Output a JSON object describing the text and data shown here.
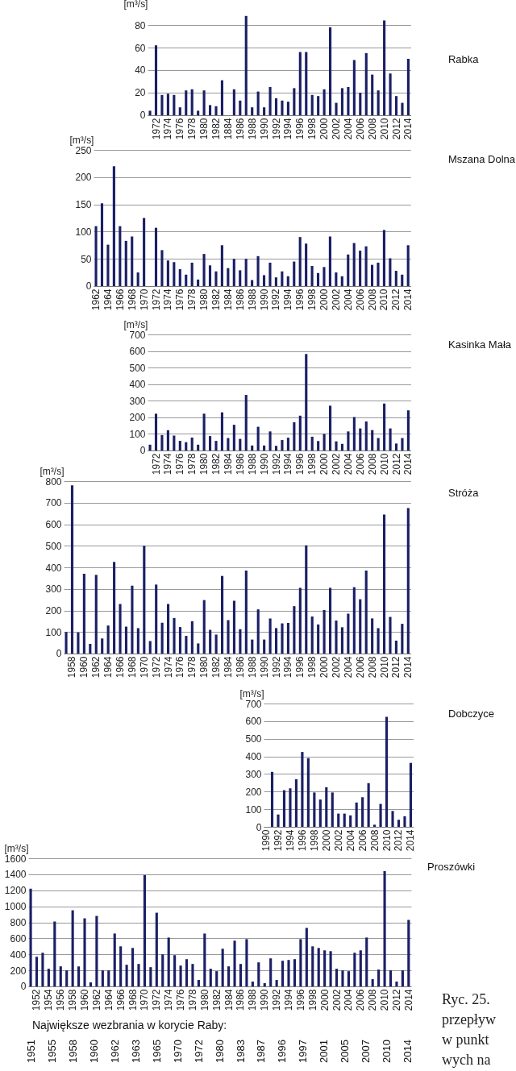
{
  "chart_data": [
    {
      "type": "bar",
      "annotations": [
        "Rabka"
      ],
      "ylabel": "[m³/s]",
      "color": "#1b1f66",
      "grid": "y",
      "ylim": [
        0,
        90
      ],
      "yticks": [
        0,
        20,
        40,
        60,
        80
      ],
      "categories": [
        null,
        "1972",
        null,
        "1974",
        null,
        "1976",
        null,
        "1978",
        null,
        "1980",
        null,
        "1982",
        null,
        "1884",
        null,
        "1986",
        null,
        "1988",
        null,
        "1990",
        null,
        "1992",
        null,
        "1994",
        null,
        "1996",
        null,
        "1998",
        null,
        "2000",
        null,
        "2002",
        null,
        "2004",
        null,
        "2006",
        null,
        "2008",
        null,
        "2010",
        null,
        "2012",
        null,
        "2014"
      ],
      "values": [
        4,
        62,
        18,
        19,
        18,
        7,
        22,
        23,
        4,
        22,
        9,
        8,
        31,
        null,
        23,
        13,
        88,
        7,
        21,
        7,
        25,
        15,
        13,
        12,
        24,
        56,
        56,
        18,
        17,
        23,
        78,
        11,
        24,
        25,
        49,
        20,
        55,
        36,
        22,
        84,
        37,
        17,
        11,
        50
      ]
    },
    {
      "type": "bar",
      "annotations": [
        "Mszana Dolna"
      ],
      "ylabel": "[m³/s]",
      "color": "#1b1f66",
      "grid": "y",
      "ylim": [
        0,
        250
      ],
      "yticks": [
        0,
        50,
        100,
        150,
        200,
        250
      ],
      "categories": [
        "1962",
        null,
        "1964",
        null,
        "1966",
        null,
        "1968",
        null,
        "1970",
        null,
        "1972",
        null,
        "1974",
        null,
        "1976",
        null,
        "1978",
        null,
        "1980",
        null,
        "1982",
        null,
        "1984",
        null,
        "1986",
        null,
        "1988",
        null,
        "1990",
        null,
        "1992",
        null,
        "1994",
        null,
        "1996",
        null,
        "1998",
        null,
        "2000",
        null,
        "2002",
        null,
        "2004",
        null,
        "2006",
        null,
        "2008",
        null,
        "2010",
        null,
        "2012",
        null,
        "2014"
      ],
      "values": [
        110,
        152,
        76,
        220,
        110,
        83,
        91,
        25,
        125,
        null,
        107,
        66,
        47,
        44,
        31,
        21,
        43,
        12,
        59,
        38,
        27,
        75,
        33,
        50,
        29,
        50,
        11,
        55,
        20,
        43,
        16,
        27,
        18,
        45,
        90,
        78,
        37,
        24,
        35,
        91,
        25,
        18,
        58,
        79,
        65,
        73,
        39,
        43,
        103,
        51,
        28,
        21,
        75
      ]
    },
    {
      "type": "bar",
      "annotations": [
        "Kasinka Mała"
      ],
      "ylabel": "[m³/s]",
      "color": "#1b1f66",
      "grid": "y",
      "ylim": [
        0,
        700
      ],
      "yticks": [
        0,
        100,
        200,
        300,
        400,
        500,
        600,
        700
      ],
      "categories": [
        null,
        "1972",
        null,
        "1974",
        null,
        "1976",
        null,
        "1978",
        null,
        "1980",
        null,
        "1982",
        null,
        "1984",
        null,
        "1986",
        null,
        "1988",
        null,
        "1990",
        null,
        "1992",
        null,
        "1994",
        null,
        "1996",
        null,
        "1998",
        null,
        "2000",
        null,
        "2002",
        null,
        "2004",
        null,
        "2006",
        null,
        "2008",
        null,
        "2010",
        null,
        "2012",
        null,
        "2014"
      ],
      "values": [
        35,
        222,
        93,
        122,
        90,
        58,
        50,
        78,
        35,
        222,
        87,
        58,
        230,
        75,
        155,
        70,
        335,
        30,
        143,
        30,
        115,
        28,
        63,
        77,
        170,
        210,
        582,
        83,
        57,
        100,
        270,
        55,
        40,
        115,
        202,
        133,
        175,
        123,
        75,
        283,
        133,
        42,
        75,
        242
      ]
    },
    {
      "type": "bar",
      "annotations": [
        "Stróża"
      ],
      "ylabel": "[m³/s]",
      "color": "#1b1f66",
      "grid": "y",
      "ylim": [
        0,
        800
      ],
      "yticks": [
        0,
        100,
        200,
        300,
        400,
        500,
        600,
        700,
        800
      ],
      "categories": [
        null,
        "1958",
        null,
        "1960",
        null,
        "1962",
        null,
        "1964",
        null,
        "1966",
        null,
        "1968",
        null,
        "1970",
        null,
        "1972",
        null,
        "1974",
        null,
        "1976",
        null,
        "1978",
        null,
        "1980",
        null,
        "1982",
        null,
        "1984",
        null,
        "1986",
        null,
        "1988",
        null,
        "1990",
        null,
        "1992",
        null,
        "1994",
        null,
        "1996",
        null,
        "1998",
        null,
        "2000",
        null,
        "2002",
        null,
        "2004",
        null,
        "2006",
        null,
        "2008",
        null,
        "2010",
        null,
        "2012",
        null,
        "2014"
      ],
      "values": [
        100,
        780,
        98,
        370,
        45,
        365,
        70,
        130,
        425,
        230,
        125,
        315,
        118,
        500,
        58,
        320,
        143,
        230,
        165,
        123,
        82,
        150,
        47,
        248,
        110,
        88,
        360,
        155,
        245,
        113,
        385,
        65,
        205,
        65,
        163,
        118,
        140,
        142,
        220,
        305,
        502,
        172,
        135,
        202,
        305,
        153,
        122,
        185,
        308,
        252,
        385,
        163,
        118,
        645,
        170,
        60,
        138,
        675
      ]
    },
    {
      "type": "bar",
      "annotations": [
        "Dobczyce"
      ],
      "ylabel": "[m³/s]",
      "color": "#1b1f66",
      "grid": "y",
      "ylim": [
        0,
        700
      ],
      "yticks": [
        0,
        100,
        200,
        300,
        400,
        500,
        600,
        700
      ],
      "categories": [
        "1990",
        null,
        "1992",
        null,
        "1994",
        null,
        "1996",
        null,
        "1998",
        null,
        "2000",
        null,
        "2002",
        null,
        "2004",
        null,
        "2006",
        null,
        "2008",
        null,
        "2010",
        null,
        "2012",
        null,
        "2014"
      ],
      "values": [
        null,
        312,
        70,
        208,
        218,
        270,
        425,
        390,
        195,
        155,
        225,
        195,
        75,
        75,
        65,
        138,
        168,
        248,
        12,
        130,
        625,
        90,
        40,
        60,
        363
      ]
    },
    {
      "type": "bar",
      "ylabel": "[m³/s]",
      "color": "#1b1f66",
      "grid": "y",
      "ylim": [
        0,
        1600
      ],
      "yticks": [
        0,
        200,
        400,
        600,
        800,
        {
          "value": 1000,
          "label": "1000"
        },
        {
          "value": 1200,
          "label": "1200"
        },
        {
          "value": 1400,
          "label": "1400"
        },
        {
          "value": 1600,
          "label": "1600"
        }
      ],
      "categories": [
        null,
        "1952",
        null,
        "1954",
        null,
        "1956",
        null,
        "1958",
        null,
        "1960",
        null,
        "1962",
        null,
        "1964",
        null,
        "1966",
        null,
        "1968",
        null,
        "1970",
        null,
        "1972",
        null,
        "1974",
        null,
        "1976",
        null,
        "1978",
        null,
        "1980",
        null,
        "1982",
        null,
        "1984",
        null,
        "1986",
        null,
        "1988",
        null,
        "1990",
        null,
        "1992",
        null,
        "1994",
        null,
        "1996",
        null,
        "1998",
        null,
        "2000",
        null,
        "2002",
        null,
        "2004",
        null,
        "2006",
        null,
        "2008",
        null,
        "2010",
        null,
        "2012",
        null,
        "2014"
      ],
      "values": [
        1220,
        370,
        420,
        220,
        810,
        250,
        200,
        950,
        250,
        850,
        50,
        880,
        200,
        200,
        660,
        500,
        270,
        480,
        280,
        1390,
        240,
        920,
        400,
        610,
        390,
        260,
        340,
        280,
        80,
        660,
        220,
        190,
        470,
        250,
        570,
        280,
        590,
        60,
        300,
        40,
        350,
        80,
        320,
        330,
        340,
        590,
        730,
        500,
        480,
        450,
        440,
        220,
        200,
        190,
        420,
        450,
        610,
        90,
        210,
        1440,
        200,
        60,
        200,
        830
      ],
      "annotations": [
        "Proszówki",
        "Największe wezbrania w korycie Raby:",
        "1951",
        "1955",
        "1958",
        "1960",
        "1962",
        "1963",
        "1965",
        "1970",
        "1972",
        "1980",
        "1983",
        "1987",
        "1996",
        "1997",
        "2001",
        "2005",
        "2007",
        "2010",
        "2014"
      ]
    },
    {
      "type": "other",
      "annotations": [
        "Ryc. 25.",
        "przepływ",
        "w punkt",
        "wych na"
      ]
    }
  ]
}
